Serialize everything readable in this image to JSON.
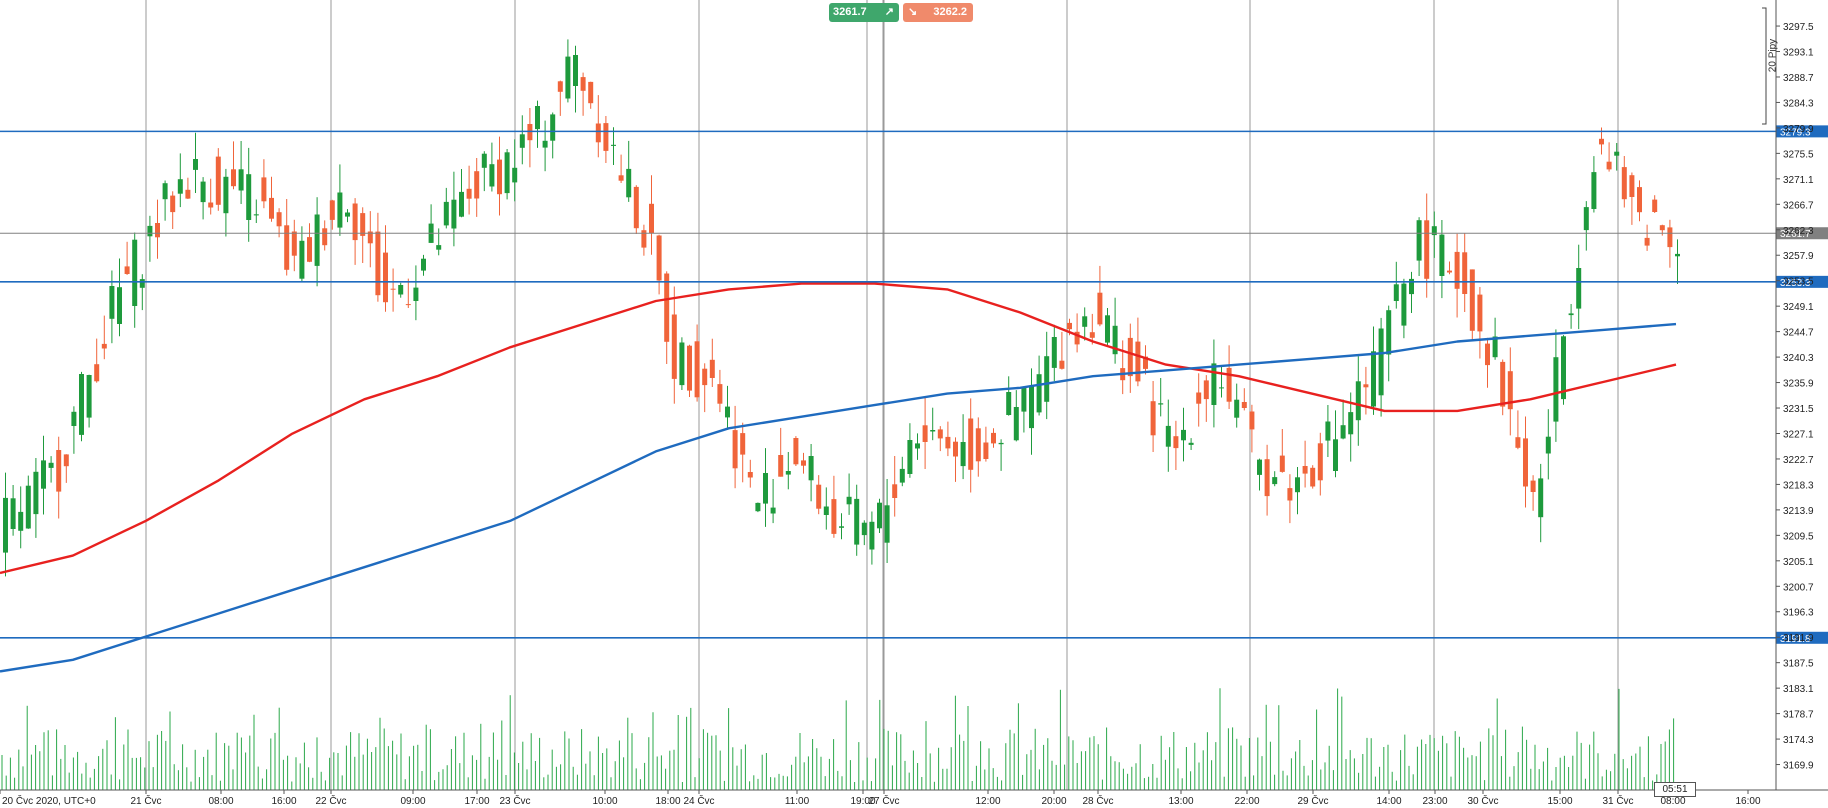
{
  "quotes": {
    "bid": "3261.7",
    "ask": "3262.2",
    "bid_arrow": "↗",
    "ask_arrow": "↘",
    "colors": {
      "bid": "#3fa76c",
      "ask": "#f08a6b"
    }
  },
  "pips_label": "20 Pipy",
  "timer": "05:51",
  "colors": {
    "bull": "#1e9a3c",
    "bear": "#f0643a",
    "ma_red": "#e8211f",
    "ma_blue": "#1f6bbf",
    "hline": "#1f6bbf",
    "volume": "#2aa84a",
    "current_price": "#808080"
  },
  "chart_data": {
    "type": "candlestick",
    "ylim": [
      3165.5,
      3302.0
    ],
    "y_ticks": [
      "3297.5",
      "3293.1",
      "3288.7",
      "3284.3",
      "3279.9",
      "3275.5",
      "3271.1",
      "3266.7",
      "3262.3",
      "3257.9",
      "3253.5",
      "3249.1",
      "3244.7",
      "3240.3",
      "3235.9",
      "3231.5",
      "3227.1",
      "3222.7",
      "3218.3",
      "3213.9",
      "3209.5",
      "3205.1",
      "3200.7",
      "3196.3",
      "3191.9",
      "3187.5",
      "3183.1",
      "3178.7",
      "3174.3",
      "3169.9"
    ],
    "x_labels": [
      "20 Čvc 2020, UTC+0",
      "21 Čvc",
      "08:00",
      "16:00",
      "22 Čvc",
      "09:00",
      "17:00",
      "23 Čvc",
      "10:00",
      "18:00",
      "24 Čvc",
      "11:00",
      "19:00",
      "27 Čvc",
      "12:00",
      "20:00",
      "28 Čvc",
      "13:00",
      "22:00",
      "29 Čvc",
      "14:00",
      "23:00",
      "30 Čvc",
      "15:00",
      "31 Čvc",
      "08:00",
      "16:00"
    ],
    "horizontal_levels": [
      {
        "value": 3279.3,
        "label": "3279.3"
      },
      {
        "value": 3253.3,
        "label": "3253.3"
      },
      {
        "value": 3191.8,
        "label": "3191.8"
      }
    ],
    "current_price": {
      "value": 3261.7,
      "label": "3261.7"
    },
    "series": [
      {
        "type": "moving-average",
        "style": "red",
        "values": [
          3203,
          3206,
          3212,
          3219,
          3227,
          3233,
          3237,
          3242,
          3246,
          3250,
          3252,
          3253,
          3253,
          3252,
          3248,
          3243,
          3239,
          3237,
          3234,
          3231,
          3231,
          3233,
          3236,
          3239
        ]
      },
      {
        "type": "moving-average",
        "style": "blue",
        "values": [
          3186,
          3188,
          3192,
          3196,
          3200,
          3204,
          3208,
          3212,
          3218,
          3224,
          3228,
          3230,
          3232,
          3234,
          3235,
          3237,
          3238,
          3239,
          3240,
          3241,
          3243,
          3244,
          3245,
          3246
        ]
      }
    ]
  }
}
